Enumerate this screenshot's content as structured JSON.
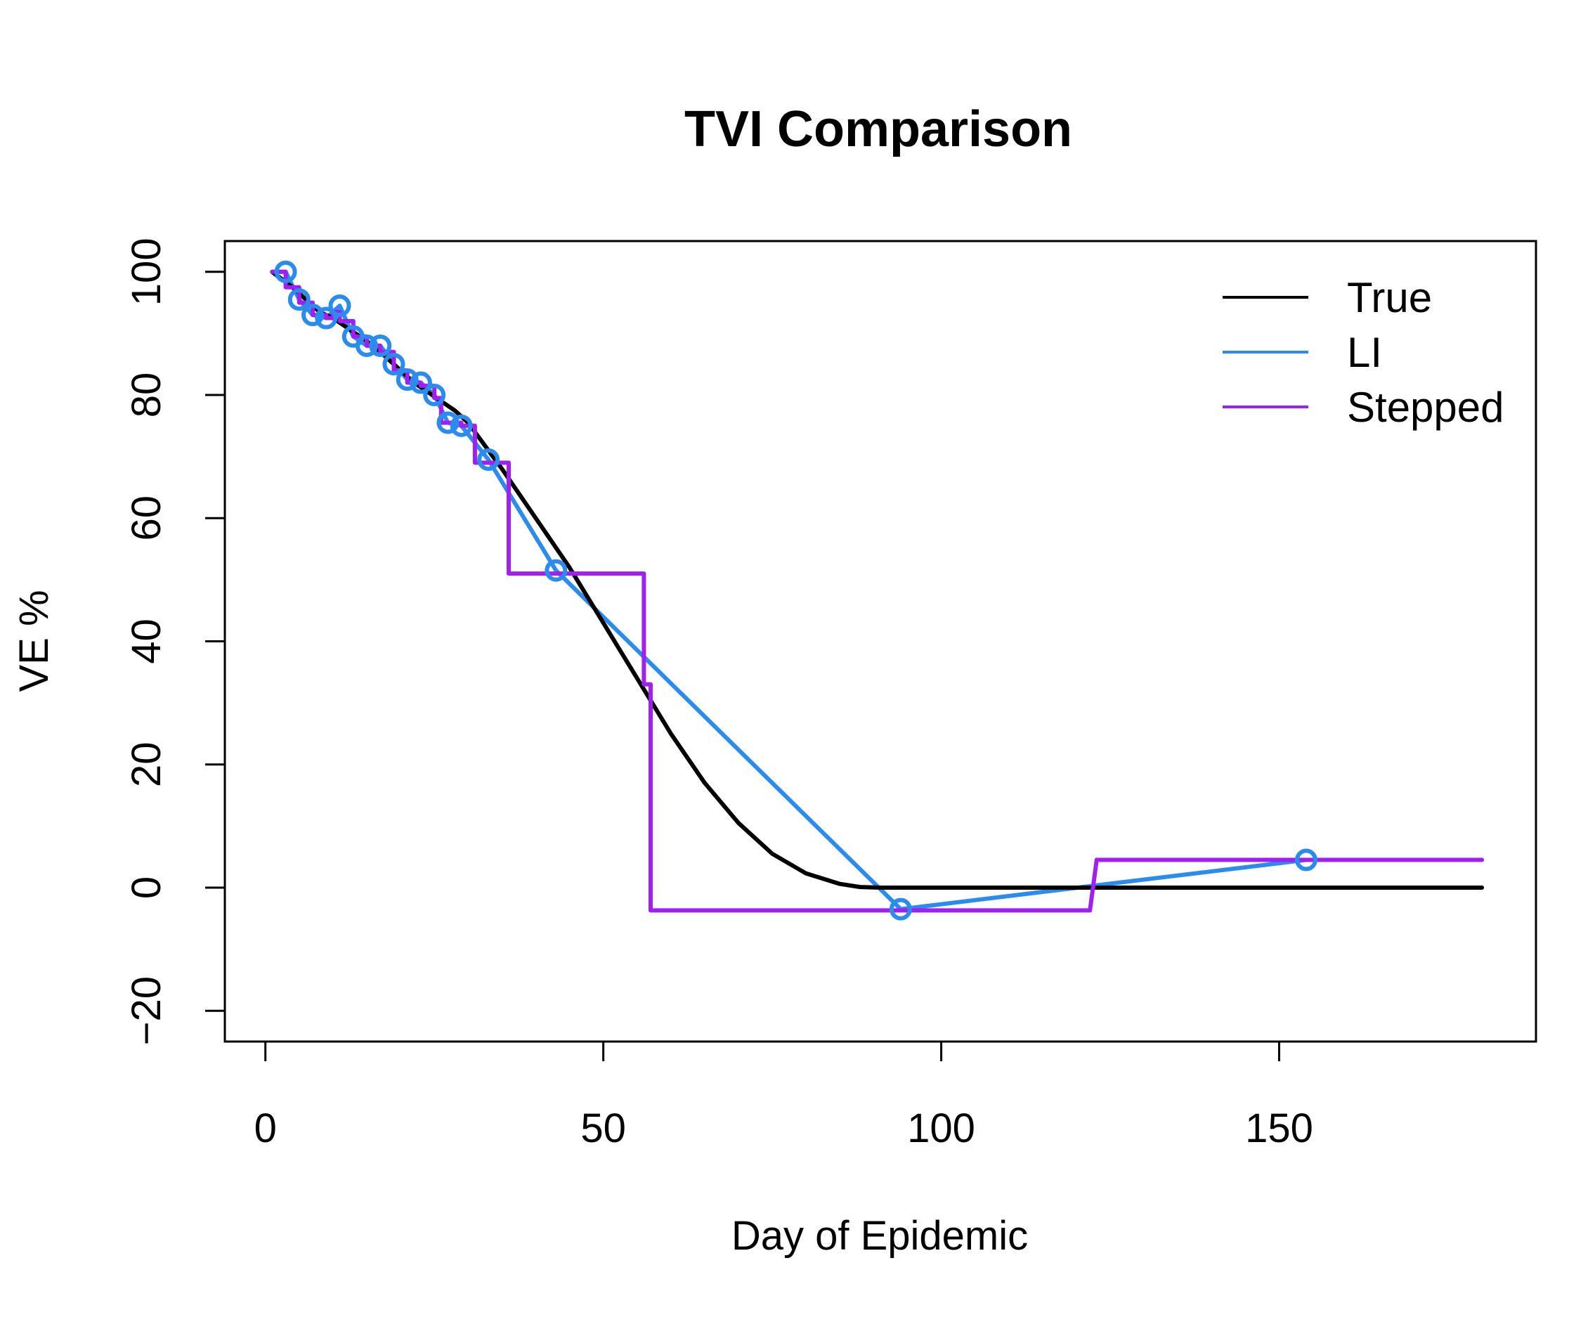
{
  "chart_data": {
    "type": "line",
    "title": "TVI Comparison",
    "xlabel": "Day of Epidemic",
    "ylabel": "VE %",
    "xlim": [
      -6,
      188
    ],
    "ylim": [
      -25,
      105
    ],
    "xticks": [
      0,
      50,
      100,
      150
    ],
    "yticks": [
      -20,
      0,
      20,
      40,
      60,
      80,
      100
    ],
    "grid": false,
    "legend": "top-right",
    "series": [
      {
        "name": "True",
        "color": "#000000",
        "x": [
          1,
          4,
          6,
          8,
          10,
          12,
          14,
          16,
          18,
          20,
          22,
          24,
          26,
          28,
          30,
          35,
          40,
          45,
          50,
          55,
          60,
          65,
          70,
          75,
          80,
          85,
          88,
          91,
          100,
          120,
          150,
          180
        ],
        "y": [
          100,
          97.5,
          95.5,
          93.5,
          92.5,
          91,
          89.5,
          88,
          86,
          84,
          82,
          80.5,
          79,
          77.5,
          75.5,
          68,
          60,
          52,
          43,
          34,
          25,
          17,
          10.5,
          5.5,
          2.3,
          0.6,
          0.1,
          0,
          0,
          0,
          0,
          0
        ]
      },
      {
        "name": "LI",
        "color": "#2b8cee",
        "x": [
          1,
          3,
          5,
          7,
          9,
          11,
          13,
          15,
          17,
          19,
          21,
          23,
          25,
          27,
          29,
          33,
          43,
          94,
          154
        ],
        "y": [
          100,
          100,
          95.5,
          93,
          92.5,
          94.5,
          89.5,
          88,
          88,
          85,
          82.5,
          82,
          80,
          75.5,
          75,
          69.5,
          51.5,
          -3.5,
          4.5
        ],
        "points_x": [
          3,
          5,
          7,
          9,
          11,
          13,
          15,
          17,
          19,
          21,
          23,
          25,
          27,
          29,
          33,
          43,
          94,
          154
        ],
        "points_y": [
          100,
          95.5,
          93,
          92.5,
          94.5,
          89.5,
          88,
          88,
          85,
          82.5,
          82,
          80,
          75.5,
          75,
          69.5,
          51.5,
          -3.5,
          4.5
        ]
      },
      {
        "name": "Stepped",
        "color": "#a020f0",
        "x": [
          1,
          3,
          3,
          5,
          5,
          7,
          7,
          9,
          9,
          10,
          10,
          11,
          11,
          13,
          13,
          15,
          15,
          17,
          17,
          19,
          19,
          21,
          21,
          23,
          23,
          25,
          25,
          26,
          26,
          29,
          29,
          31,
          31,
          35,
          35,
          36,
          36,
          56,
          56,
          57,
          57,
          122,
          122,
          123,
          123,
          180
        ],
        "y": [
          100,
          100,
          97.5,
          97.5,
          95,
          95,
          93,
          93,
          92.5,
          92.5,
          93.5,
          93.5,
          92,
          92,
          89.5,
          89.5,
          88,
          88,
          87,
          87,
          84,
          84,
          82,
          82,
          81.5,
          81.5,
          79.5,
          79.5,
          75.5,
          75.5,
          75,
          75,
          69,
          69,
          69,
          69,
          51,
          51,
          33,
          33,
          -3.7,
          -3.7,
          -3.7,
          4.5,
          4.5,
          4.5
        ]
      }
    ]
  }
}
